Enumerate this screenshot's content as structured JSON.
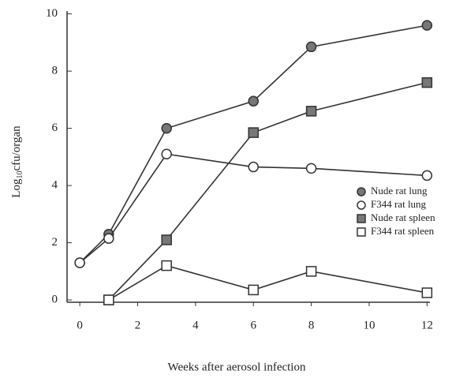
{
  "chart_data": {
    "type": "line",
    "x_label": "Weeks after aerosol infection",
    "y_label": [
      "Log",
      "10",
      "cfu/organ"
    ],
    "xlim": [
      -0.44,
      12.1
    ],
    "ylim": [
      -0.08,
      10.1
    ],
    "xticks": [
      0,
      2,
      4,
      6,
      8,
      10,
      12
    ],
    "yticks": [
      0,
      2,
      4,
      6,
      8,
      10
    ],
    "legend": "right",
    "series": [
      {
        "name": "Nude rat lung",
        "color": "#333333",
        "marker": "circle",
        "filled": true,
        "x": [
          0,
          1,
          3,
          6,
          8,
          12
        ],
        "values": [
          1.3,
          2.3,
          6.0,
          6.95,
          8.85,
          9.6
        ]
      },
      {
        "name": "F344 rat lung",
        "color": "#333333",
        "marker": "circle",
        "filled": false,
        "x": [
          0,
          1,
          3,
          6,
          8,
          12
        ],
        "values": [
          1.3,
          2.15,
          5.1,
          4.65,
          4.6,
          4.35
        ]
      },
      {
        "name": "Nude rat spleen",
        "color": "#333333",
        "marker": "square",
        "filled": true,
        "x": [
          1,
          3,
          6,
          8,
          12
        ],
        "values": [
          0,
          2.1,
          5.85,
          6.6,
          7.6
        ]
      },
      {
        "name": "F344 rat spleen",
        "color": "#333333",
        "marker": "square",
        "filled": false,
        "x": [
          1,
          3,
          6,
          8,
          12
        ],
        "values": [
          0,
          1.2,
          0.35,
          1.0,
          0.25
        ]
      }
    ]
  }
}
